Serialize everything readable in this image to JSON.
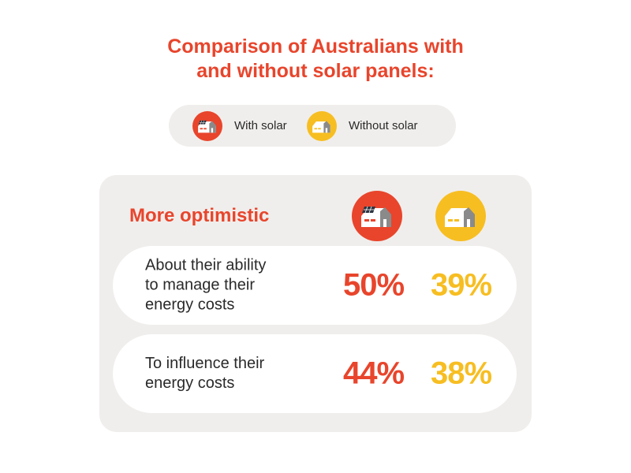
{
  "title_lines": [
    "Comparison of Australians with",
    "and without solar panels:"
  ],
  "legend": [
    {
      "label": "With solar",
      "icon": "house-with-solar-icon",
      "color": "#e8452c"
    },
    {
      "label": "Without solar",
      "icon": "house-without-solar-icon",
      "color": "#f7be22"
    }
  ],
  "chart_data": {
    "type": "table",
    "title": "Comparison of Australians with and without solar panels:",
    "section": "More optimistic",
    "series": [
      {
        "name": "With solar",
        "color": "#e8452c",
        "values": [
          50,
          44
        ]
      },
      {
        "name": "Without solar",
        "color": "#f7be22",
        "values": [
          39,
          38
        ]
      }
    ],
    "rows": [
      {
        "label_lines": [
          "About their ability",
          "to manage their",
          "energy costs"
        ],
        "with_solar": "50%",
        "without_solar": "39%"
      },
      {
        "label_lines": [
          "To influence their",
          "energy costs"
        ],
        "with_solar": "44%",
        "without_solar": "38%"
      }
    ],
    "unit": "%"
  }
}
